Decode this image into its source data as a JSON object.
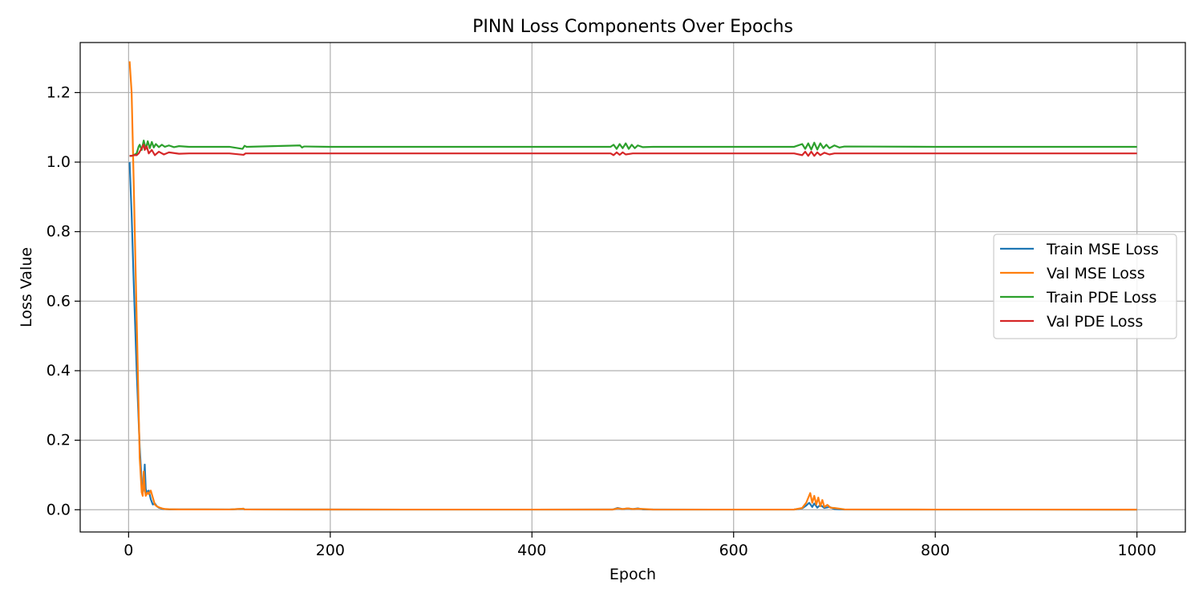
{
  "chart_data": {
    "type": "line",
    "title": "PINN Loss Components Over Epochs",
    "xlabel": "Epoch",
    "ylabel": "Loss Value",
    "xlim": [
      -48,
      1048
    ],
    "ylim": [
      -0.064,
      1.344
    ],
    "xticks": [
      0,
      200,
      400,
      600,
      800,
      1000
    ],
    "yticks": [
      0.0,
      0.2,
      0.4,
      0.6,
      0.8,
      1.0,
      1.2
    ],
    "xtick_labels": [
      "0",
      "200",
      "400",
      "600",
      "800",
      "1000"
    ],
    "ytick_labels": [
      "0.0",
      "0.2",
      "0.4",
      "0.6",
      "0.8",
      "1.0",
      "1.2"
    ],
    "grid": true,
    "legend_position": "center-right",
    "series": [
      {
        "name": "Train MSE Loss",
        "color": "#1f77b4",
        "x": [
          1,
          3,
          5,
          8,
          11,
          13,
          14,
          15,
          16,
          17,
          18,
          20,
          22,
          24,
          26,
          28,
          30,
          33,
          36,
          40,
          50,
          100,
          114,
          115,
          200,
          300,
          400,
          480,
          485,
          490,
          495,
          500,
          505,
          510,
          520,
          600,
          660,
          668,
          672,
          675,
          678,
          680,
          683,
          686,
          690,
          695,
          700,
          710,
          800,
          900,
          1000
        ],
        "y": [
          1.0,
          0.85,
          0.66,
          0.4,
          0.18,
          0.08,
          0.05,
          0.06,
          0.13,
          0.06,
          0.05,
          0.055,
          0.03,
          0.015,
          0.018,
          0.01,
          0.006,
          0.003,
          0.002,
          0.001,
          0.001,
          0.0008,
          0.003,
          0.0008,
          0.0006,
          0.0005,
          0.0005,
          0.0006,
          0.005,
          0.002,
          0.004,
          0.002,
          0.004,
          0.001,
          0.0006,
          0.0005,
          0.0006,
          0.004,
          0.012,
          0.02,
          0.008,
          0.018,
          0.006,
          0.014,
          0.005,
          0.008,
          0.002,
          0.0006,
          0.0005,
          0.0005,
          0.0004
        ]
      },
      {
        "name": "Val MSE Loss",
        "color": "#ff7f0e",
        "x": [
          1,
          3,
          5,
          8,
          11,
          13,
          14,
          15,
          16,
          17,
          18,
          19,
          20,
          22,
          24,
          26,
          28,
          30,
          33,
          36,
          40,
          50,
          100,
          114,
          115,
          200,
          300,
          400,
          480,
          485,
          490,
          495,
          500,
          505,
          520,
          600,
          660,
          668,
          672,
          676,
          678,
          680,
          682,
          684,
          686,
          688,
          690,
          693,
          696,
          700,
          705,
          710,
          800,
          900,
          1000
        ],
        "y": [
          1.29,
          1.2,
          0.95,
          0.55,
          0.15,
          0.05,
          0.04,
          0.11,
          0.06,
          0.04,
          0.045,
          0.05,
          0.045,
          0.055,
          0.035,
          0.015,
          0.01,
          0.007,
          0.004,
          0.002,
          0.0015,
          0.001,
          0.0008,
          0.003,
          0.0008,
          0.0006,
          0.0005,
          0.0005,
          0.0006,
          0.004,
          0.002,
          0.004,
          0.002,
          0.003,
          0.0006,
          0.0005,
          0.0006,
          0.005,
          0.02,
          0.048,
          0.02,
          0.04,
          0.015,
          0.035,
          0.01,
          0.028,
          0.008,
          0.014,
          0.006,
          0.005,
          0.003,
          0.001,
          0.0005,
          0.0005,
          0.0004
        ]
      },
      {
        "name": "Train PDE Loss",
        "color": "#2ca02c",
        "x": [
          1,
          3,
          5,
          8,
          10,
          11,
          13,
          15,
          17,
          19,
          21,
          23,
          25,
          27,
          30,
          33,
          36,
          40,
          45,
          50,
          60,
          100,
          113,
          115,
          117,
          170,
          172,
          174,
          200,
          300,
          400,
          478,
          481,
          484,
          487,
          490,
          493,
          496,
          499,
          502,
          505,
          510,
          520,
          600,
          650,
          660,
          668,
          671,
          674,
          677,
          680,
          683,
          686,
          689,
          692,
          695,
          700,
          705,
          710,
          800,
          900,
          1000
        ],
        "y": [
          1.018,
          1.018,
          1.02,
          1.025,
          1.045,
          1.05,
          1.035,
          1.062,
          1.038,
          1.06,
          1.04,
          1.058,
          1.042,
          1.052,
          1.043,
          1.05,
          1.044,
          1.048,
          1.043,
          1.046,
          1.044,
          1.044,
          1.038,
          1.047,
          1.044,
          1.048,
          1.042,
          1.045,
          1.044,
          1.044,
          1.044,
          1.044,
          1.05,
          1.038,
          1.052,
          1.04,
          1.054,
          1.038,
          1.05,
          1.04,
          1.048,
          1.043,
          1.044,
          1.044,
          1.044,
          1.044,
          1.052,
          1.038,
          1.054,
          1.036,
          1.056,
          1.036,
          1.054,
          1.04,
          1.05,
          1.04,
          1.048,
          1.042,
          1.045,
          1.044,
          1.044,
          1.044
        ]
      },
      {
        "name": "Val PDE Loss",
        "color": "#d62728",
        "x": [
          1,
          3,
          5,
          8,
          10,
          12,
          14,
          15,
          16,
          18,
          20,
          23,
          26,
          30,
          35,
          40,
          50,
          60,
          100,
          114,
          116,
          200,
          300,
          400,
          478,
          481,
          484,
          487,
          490,
          493,
          500,
          510,
          600,
          660,
          668,
          671,
          674,
          677,
          680,
          683,
          686,
          690,
          695,
          700,
          710,
          800,
          900,
          1000
        ],
        "y": [
          1.018,
          1.018,
          1.02,
          1.02,
          1.025,
          1.035,
          1.045,
          1.05,
          1.035,
          1.045,
          1.025,
          1.035,
          1.02,
          1.03,
          1.022,
          1.028,
          1.024,
          1.025,
          1.025,
          1.021,
          1.025,
          1.025,
          1.025,
          1.025,
          1.025,
          1.02,
          1.028,
          1.021,
          1.028,
          1.022,
          1.025,
          1.025,
          1.025,
          1.025,
          1.02,
          1.03,
          1.018,
          1.03,
          1.018,
          1.028,
          1.02,
          1.027,
          1.022,
          1.025,
          1.025,
          1.025,
          1.025,
          1.025
        ]
      }
    ]
  }
}
